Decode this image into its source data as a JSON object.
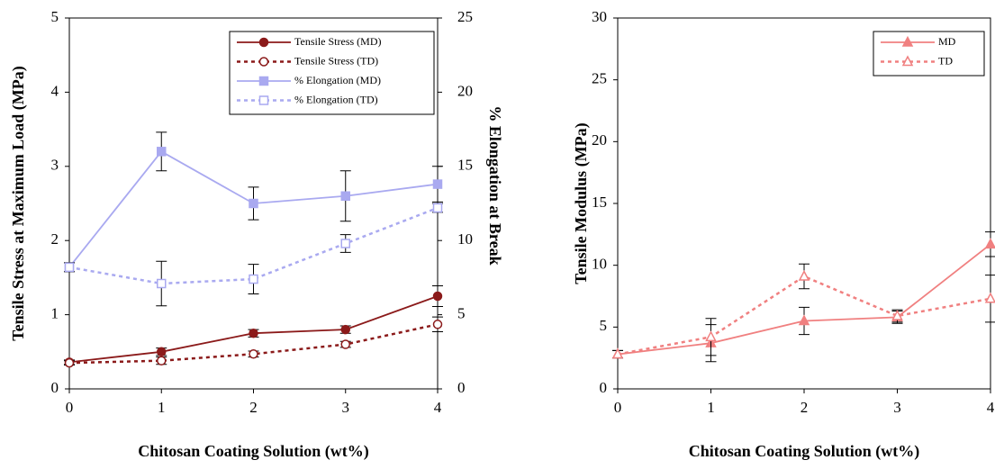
{
  "chart_data": [
    {
      "type": "line",
      "x_label": "Chitosan Coating Solution (wt%)",
      "y_label": "Tensile Stress at Maximum Load (MPa)",
      "y2_label": "% Elongation at Break",
      "x": [
        0,
        1,
        2,
        3,
        4
      ],
      "xlim": [
        0,
        4
      ],
      "xticks": [
        0,
        1,
        2,
        3,
        4
      ],
      "ylim": [
        0,
        5
      ],
      "yticks": [
        0,
        1,
        2,
        3,
        4,
        5
      ],
      "y2lim": [
        0,
        25
      ],
      "y2ticks": [
        0,
        5,
        10,
        15,
        20,
        25
      ],
      "legend": "upper right",
      "series": [
        {
          "name": "Tensile Stress (MD)",
          "color": "#8b1a1a",
          "marker": "circle",
          "filled": true,
          "dashed": false,
          "values": [
            0.36,
            0.5,
            0.75,
            0.8,
            1.25
          ],
          "errors": [
            0.03,
            0.05,
            0.05,
            0.05,
            0.14
          ]
        },
        {
          "name": "Tensile Stress (TD)",
          "color": "#8b1a1a",
          "marker": "circle",
          "filled": false,
          "dashed": true,
          "values": [
            0.35,
            0.38,
            0.47,
            0.6,
            0.87
          ],
          "errors": [
            0.03,
            0.05,
            0.04,
            0.04,
            0.1
          ]
        },
        {
          "name": "% Elongation (MD)",
          "color": "#a9a9f0",
          "marker": "square",
          "filled": true,
          "dashed": false,
          "axis": "y2",
          "values": [
            8.2,
            16,
            12.5,
            13,
            13.8
          ],
          "errors": [
            0.3,
            1.3,
            1.1,
            1.7,
            1.2
          ]
        },
        {
          "name": "% Elongation (TD)",
          "color": "#a9a9f0",
          "marker": "square",
          "filled": false,
          "dashed": true,
          "axis": "y2",
          "values": [
            8.2,
            7.1,
            7.4,
            9.8,
            12.2
          ],
          "errors": [
            0.3,
            1.5,
            1.0,
            0.6,
            0.3
          ]
        }
      ]
    },
    {
      "type": "line",
      "x_label": "Chitosan Coating Solution (wt%)",
      "y_label": "Tensile Modulus (MPa)",
      "x": [
        0,
        1,
        2,
        3,
        4
      ],
      "xlim": [
        0,
        4
      ],
      "xticks": [
        0,
        1,
        2,
        3,
        4
      ],
      "ylim": [
        0,
        30
      ],
      "yticks": [
        0,
        5,
        10,
        15,
        20,
        25,
        30
      ],
      "legend": "upper right",
      "series": [
        {
          "name": "MD",
          "color": "#f08080",
          "marker": "triangle",
          "filled": true,
          "dashed": false,
          "values": [
            2.8,
            3.7,
            5.5,
            5.8,
            11.7
          ],
          "errors": [
            0.3,
            1.5,
            1.1,
            0.5,
            1.0
          ]
        },
        {
          "name": "TD",
          "color": "#f08080",
          "marker": "triangle",
          "filled": false,
          "dashed": true,
          "values": [
            2.8,
            4.2,
            9.1,
            5.9,
            7.3
          ],
          "errors": [
            0.3,
            1.5,
            1.0,
            0.5,
            1.9
          ]
        }
      ]
    }
  ]
}
